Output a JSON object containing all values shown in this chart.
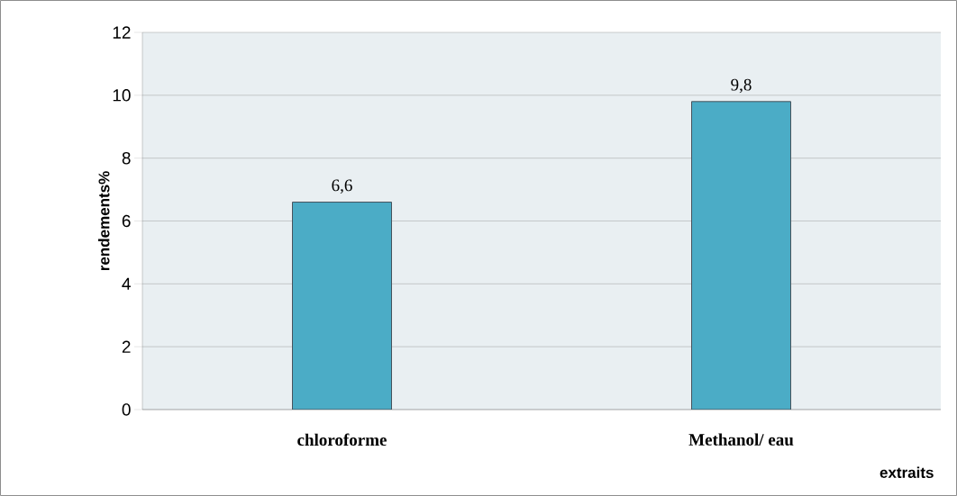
{
  "chart_data": {
    "type": "bar",
    "xlabel": "extraits",
    "ylabel": "rendements%",
    "categories": [
      "chloroforme",
      "Methanol/ eau"
    ],
    "values": [
      6.6,
      9.8
    ],
    "value_labels": [
      "6,6",
      "9,8"
    ],
    "color": "#4bacc6",
    "ylim": [
      0,
      12
    ],
    "yticks": [
      0,
      2,
      4,
      6,
      8,
      10,
      12
    ],
    "grid": "y"
  }
}
